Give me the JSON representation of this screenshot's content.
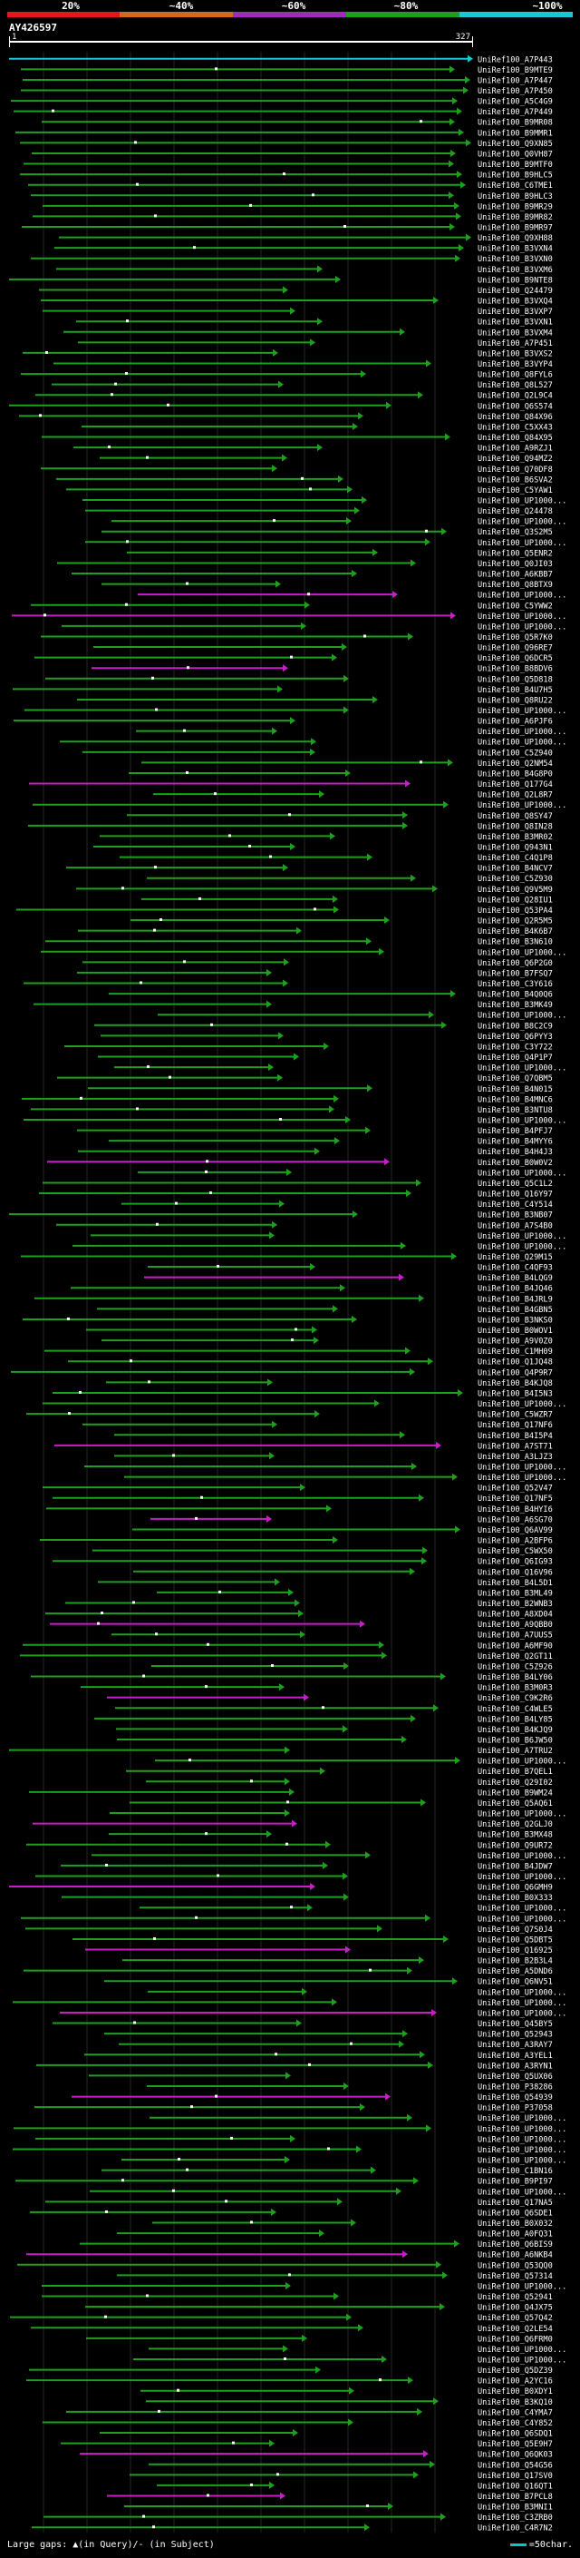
{
  "identity_scale": {
    "labels": [
      "20%",
      "~40%",
      "~60%",
      "~80%",
      "~100%"
    ],
    "colors": [
      "#e8141e",
      "#d2691e",
      "#9a2eb5",
      "#1ea01e",
      "#19c8d2"
    ]
  },
  "query": {
    "accession": "AY426597",
    "start": "1",
    "end": "327"
  },
  "hits": [
    {
      "id": "UniRef100_A7P443",
      "color": "#19c8d2"
    },
    {
      "id": "UniRef100_B9MTE9",
      "color": "#1ea01e"
    },
    {
      "id": "UniRef100_A7P447",
      "color": "#1ea01e"
    },
    {
      "id": "UniRef100_A7P450",
      "color": "#1ea01e"
    },
    {
      "id": "UniRef100_A5C4G9",
      "color": "#1ea01e"
    },
    {
      "id": "UniRef100_A7P449",
      "color": "#1ea01e"
    },
    {
      "id": "UniRef100_B9MR08",
      "color": "#1ea01e"
    },
    {
      "id": "UniRef100_B9MMR1",
      "color": "#1ea01e"
    },
    {
      "id": "UniRef100_Q9XN85",
      "color": "#1ea01e"
    },
    {
      "id": "UniRef100_Q0VH87",
      "color": "#1ea01e"
    },
    {
      "id": "UniRef100_B9MTF0",
      "color": "#1ea01e"
    },
    {
      "id": "UniRef100_B9HLC5",
      "color": "#1ea01e"
    },
    {
      "id": "UniRef100_C6TME1",
      "color": "#1ea01e"
    },
    {
      "id": "UniRef100_B9HLC3",
      "color": "#1ea01e"
    },
    {
      "id": "UniRef100_B9MR29",
      "color": "#1ea01e"
    },
    {
      "id": "UniRef100_B9MR82",
      "color": "#1ea01e"
    },
    {
      "id": "UniRef100_B9MR97",
      "color": "#1ea01e"
    },
    {
      "id": "UniRef100_Q9XH88",
      "color": "#1ea01e"
    },
    {
      "id": "UniRef100_B3VXN4",
      "color": "#1ea01e"
    },
    {
      "id": "UniRef100_B3VXN0",
      "color": "#1ea01e"
    },
    {
      "id": "UniRef100_B3VXM6",
      "color": "#1ea01e"
    },
    {
      "id": "UniRef100_B9NTE8",
      "color": "#1ea01e"
    },
    {
      "id": "UniRef100_Q24479",
      "color": "#1ea01e"
    },
    {
      "id": "UniRef100_B3VXQ4",
      "color": "#1ea01e"
    },
    {
      "id": "UniRef100_B3VXP7",
      "color": "#1ea01e"
    },
    {
      "id": "UniRef100_B3VXN1",
      "color": "#1ea01e"
    },
    {
      "id": "UniRef100_B3VXM4",
      "color": "#1ea01e"
    },
    {
      "id": "UniRef100_A7P451",
      "color": "#1ea01e"
    },
    {
      "id": "UniRef100_B3VXS2",
      "color": "#1ea01e"
    },
    {
      "id": "UniRef100_B3VYP4",
      "color": "#1ea01e"
    },
    {
      "id": "UniRef100_Q8FYL6",
      "color": "#1ea01e"
    },
    {
      "id": "UniRef100_Q8L527",
      "color": "#1ea01e"
    },
    {
      "id": "UniRef100_Q2L9C4",
      "color": "#1ea01e"
    },
    {
      "id": "UniRef100_Q6S574",
      "color": "#1ea01e"
    },
    {
      "id": "UniRef100_Q84X96",
      "color": "#1ea01e"
    },
    {
      "id": "UniRef100_C5XX43",
      "color": "#1ea01e"
    },
    {
      "id": "UniRef100_Q84X95",
      "color": "#1ea01e"
    },
    {
      "id": "UniRef100_A9RZJ1",
      "color": "#1ea01e"
    },
    {
      "id": "UniRef100_Q94MZ2",
      "color": "#1ea01e"
    },
    {
      "id": "UniRef100_Q70DF8",
      "color": "#1ea01e"
    },
    {
      "id": "UniRef100_B6SVA2",
      "color": "#1ea01e"
    },
    {
      "id": "UniRef100_C5YAW1",
      "color": "#1ea01e"
    },
    {
      "id": "UniRef100_UP1000...",
      "color": "#1ea01e"
    },
    {
      "id": "UniRef100_Q24478",
      "color": "#1ea01e"
    },
    {
      "id": "UniRef100_UP1000...",
      "color": "#1ea01e"
    },
    {
      "id": "UniRef100_Q3S2M5",
      "color": "#1ea01e"
    },
    {
      "id": "UniRef100_UP1000...",
      "color": "#1ea01e"
    },
    {
      "id": "UniRef100_Q5ENR2",
      "color": "#1ea01e"
    },
    {
      "id": "UniRef100_Q0JI03",
      "color": "#1ea01e"
    },
    {
      "id": "UniRef100_A6KBB7",
      "color": "#1ea01e"
    },
    {
      "id": "UniRef100_Q8BTX9",
      "color": "#1ea01e"
    },
    {
      "id": "UniRef100_UP1000...",
      "color": "#c81ec8"
    },
    {
      "id": "UniRef100_C5YWW2",
      "color": "#1ea01e"
    },
    {
      "id": "UniRef100_UP1000...",
      "color": "#c81ec8"
    },
    {
      "id": "UniRef100_UP1000...",
      "color": "#1ea01e"
    },
    {
      "id": "UniRef100_Q5R7K0",
      "color": "#1ea01e"
    },
    {
      "id": "UniRef100_Q96RE7",
      "color": "#1ea01e"
    },
    {
      "id": "UniRef100_Q6DCR5",
      "color": "#1ea01e"
    },
    {
      "id": "UniRef100_B8BDV6",
      "color": "#c81ec8"
    },
    {
      "id": "UniRef100_Q5D818",
      "color": "#1ea01e"
    },
    {
      "id": "UniRef100_B4U7H5",
      "color": "#1ea01e"
    },
    {
      "id": "UniRef100_Q8RU22",
      "color": "#1ea01e"
    },
    {
      "id": "UniRef100_UP1000...",
      "color": "#1ea01e"
    },
    {
      "id": "UniRef100_A6PJF6",
      "color": "#1ea01e"
    },
    {
      "id": "UniRef100_UP1000...",
      "color": "#1ea01e"
    },
    {
      "id": "UniRef100_UP1000...",
      "color": "#1ea01e"
    },
    {
      "id": "UniRef100_C5Z940",
      "color": "#1ea01e"
    },
    {
      "id": "UniRef100_Q2NM54",
      "color": "#1ea01e"
    },
    {
      "id": "UniRef100_B4G8P0",
      "color": "#1ea01e"
    },
    {
      "id": "UniRef100_Q177G4",
      "color": "#c81ec8"
    },
    {
      "id": "UniRef100_Q2L8R7",
      "color": "#1ea01e"
    },
    {
      "id": "UniRef100_UP1000...",
      "color": "#1ea01e"
    },
    {
      "id": "UniRef100_Q8SY47",
      "color": "#1ea01e"
    },
    {
      "id": "UniRef100_Q8IN28",
      "color": "#1ea01e"
    },
    {
      "id": "UniRef100_B3MR02",
      "color": "#1ea01e"
    },
    {
      "id": "UniRef100_Q943N1",
      "color": "#1ea01e"
    },
    {
      "id": "UniRef100_C4Q1P8",
      "color": "#1ea01e"
    },
    {
      "id": "UniRef100_B4NCV7",
      "color": "#1ea01e"
    },
    {
      "id": "UniRef100_C5Z930",
      "color": "#1ea01e"
    },
    {
      "id": "UniRef100_Q9V5M9",
      "color": "#1ea01e"
    },
    {
      "id": "UniRef100_Q28IU1",
      "color": "#1ea01e"
    },
    {
      "id": "UniRef100_Q53PA4",
      "color": "#1ea01e"
    },
    {
      "id": "UniRef100_Q2R5M5",
      "color": "#1ea01e"
    },
    {
      "id": "UniRef100_B4K6B7",
      "color": "#1ea01e"
    },
    {
      "id": "UniRef100_B3N610",
      "color": "#1ea01e"
    },
    {
      "id": "UniRef100_UP1000...",
      "color": "#1ea01e"
    },
    {
      "id": "UniRef100_Q6P2G0",
      "color": "#1ea01e"
    },
    {
      "id": "UniRef100_B7FSQ7",
      "color": "#1ea01e"
    },
    {
      "id": "UniRef100_C3Y616",
      "color": "#1ea01e"
    },
    {
      "id": "UniRef100_B4Q0Q6",
      "color": "#1ea01e"
    },
    {
      "id": "UniRef100_B3MK49",
      "color": "#1ea01e"
    },
    {
      "id": "UniRef100_UP1000...",
      "color": "#1ea01e"
    },
    {
      "id": "UniRef100_B8C2C9",
      "color": "#1ea01e"
    },
    {
      "id": "UniRef100_Q6PYY3",
      "color": "#1ea01e"
    },
    {
      "id": "UniRef100_C3Y722",
      "color": "#1ea01e"
    },
    {
      "id": "UniRef100_Q4P1P7",
      "color": "#1ea01e"
    },
    {
      "id": "UniRef100_UP1000...",
      "color": "#1ea01e"
    },
    {
      "id": "UniRef100_Q7QBM5",
      "color": "#1ea01e"
    },
    {
      "id": "UniRef100_B4N015",
      "color": "#1ea01e"
    },
    {
      "id": "UniRef100_B4MNC6",
      "color": "#1ea01e"
    },
    {
      "id": "UniRef100_B3NTU8",
      "color": "#1ea01e"
    },
    {
      "id": "UniRef100_UP1000...",
      "color": "#1ea01e"
    },
    {
      "id": "UniRef100_B4PFJ7",
      "color": "#1ea01e"
    },
    {
      "id": "UniRef100_B4MYY6",
      "color": "#1ea01e"
    },
    {
      "id": "UniRef100_B4H4J3",
      "color": "#1ea01e"
    },
    {
      "id": "UniRef100_B0W0V2",
      "color": "#c81ec8"
    },
    {
      "id": "UniRef100_UP1000...",
      "color": "#1ea01e"
    },
    {
      "id": "UniRef100_Q5C1L2",
      "color": "#1ea01e"
    },
    {
      "id": "UniRef100_Q16Y97",
      "color": "#1ea01e"
    },
    {
      "id": "UniRef100_C4Y514",
      "color": "#1ea01e"
    },
    {
      "id": "UniRef100_B3NB07",
      "color": "#1ea01e"
    },
    {
      "id": "UniRef100_A7S4B0",
      "color": "#1ea01e"
    },
    {
      "id": "UniRef100_UP1000...",
      "color": "#1ea01e"
    },
    {
      "id": "UniRef100_UP1000...",
      "color": "#1ea01e"
    },
    {
      "id": "UniRef100_Q29M15",
      "color": "#1ea01e"
    },
    {
      "id": "UniRef100_C4QF93",
      "color": "#1ea01e"
    },
    {
      "id": "UniRef100_B4LQG9",
      "color": "#c81ec8"
    },
    {
      "id": "UniRef100_B4JQ46",
      "color": "#1ea01e"
    },
    {
      "id": "UniRef100_B4JRL9",
      "color": "#1ea01e"
    },
    {
      "id": "UniRef100_B4GBN5",
      "color": "#1ea01e"
    },
    {
      "id": "UniRef100_B3NKS0",
      "color": "#1ea01e"
    },
    {
      "id": "UniRef100_B0WOV1",
      "color": "#1ea01e"
    },
    {
      "id": "UniRef100_A9V0Z0",
      "color": "#1ea01e"
    },
    {
      "id": "UniRef100_C1MH09",
      "color": "#1ea01e"
    },
    {
      "id": "UniRef100_Q1JQ48",
      "color": "#1ea01e"
    },
    {
      "id": "UniRef100_Q4P9R7",
      "color": "#1ea01e"
    },
    {
      "id": "UniRef100_B4KJQ8",
      "color": "#1ea01e"
    },
    {
      "id": "UniRef100_B4I5N3",
      "color": "#1ea01e"
    },
    {
      "id": "UniRef100_UP1000...",
      "color": "#1ea01e"
    },
    {
      "id": "UniRef100_C5WZR7",
      "color": "#1ea01e"
    },
    {
      "id": "UniRef100_Q17NF6",
      "color": "#1ea01e"
    },
    {
      "id": "UniRef100_B4I5P4",
      "color": "#1ea01e"
    },
    {
      "id": "UniRef100_A7ST71",
      "color": "#c81ec8"
    },
    {
      "id": "UniRef100_A3LJZ3",
      "color": "#1ea01e"
    },
    {
      "id": "UniRef100_UP1000...",
      "color": "#1ea01e"
    },
    {
      "id": "UniRef100_UP1000...",
      "color": "#1ea01e"
    },
    {
      "id": "UniRef100_Q52V47",
      "color": "#1ea01e"
    },
    {
      "id": "UniRef100_Q17NF5",
      "color": "#1ea01e"
    },
    {
      "id": "UniRef100_B4HYI6",
      "color": "#1ea01e"
    },
    {
      "id": "UniRef100_A6SG70",
      "color": "#c81ec8"
    },
    {
      "id": "UniRef100_Q6AV99",
      "color": "#1ea01e"
    },
    {
      "id": "UniRef100_A2BFP6",
      "color": "#1ea01e"
    },
    {
      "id": "UniRef100_C5WX50",
      "color": "#1ea01e"
    },
    {
      "id": "UniRef100_Q6IG93",
      "color": "#1ea01e"
    },
    {
      "id": "UniRef100_Q16V96",
      "color": "#1ea01e"
    },
    {
      "id": "UniRef100_B4L5D1",
      "color": "#1ea01e"
    },
    {
      "id": "UniRef100_B3ML49",
      "color": "#1ea01e"
    },
    {
      "id": "UniRef100_B2WNB3",
      "color": "#1ea01e"
    },
    {
      "id": "UniRef100_A8XD04",
      "color": "#1ea01e"
    },
    {
      "id": "UniRef100_A9QBB0",
      "color": "#c81ec8"
    },
    {
      "id": "UniRef100_A7UUS5",
      "color": "#1ea01e"
    },
    {
      "id": "UniRef100_A6MF90",
      "color": "#1ea01e"
    },
    {
      "id": "UniRef100_Q2GT11",
      "color": "#1ea01e"
    },
    {
      "id": "UniRef100_C5Z926",
      "color": "#1ea01e"
    },
    {
      "id": "UniRef100_B4LY06",
      "color": "#1ea01e"
    },
    {
      "id": "UniRef100_B3M0R3",
      "color": "#1ea01e"
    },
    {
      "id": "UniRef100_C9K2R6",
      "color": "#c81ec8"
    },
    {
      "id": "UniRef100_C4WLE5",
      "color": "#1ea01e"
    },
    {
      "id": "UniRef100_B4LY85",
      "color": "#1ea01e"
    },
    {
      "id": "UniRef100_B4KJQ9",
      "color": "#1ea01e"
    },
    {
      "id": "UniRef100_B6JW50",
      "color": "#1ea01e"
    },
    {
      "id": "UniRef100_A7TRU2",
      "color": "#1ea01e"
    },
    {
      "id": "UniRef100_UP1000...",
      "color": "#1ea01e"
    },
    {
      "id": "UniRef100_B7QEL1",
      "color": "#1ea01e"
    },
    {
      "id": "UniRef100_Q29I02",
      "color": "#1ea01e"
    },
    {
      "id": "UniRef100_B9WM24",
      "color": "#1ea01e"
    },
    {
      "id": "UniRef100_Q5AQ61",
      "color": "#1ea01e"
    },
    {
      "id": "UniRef100_UP1000...",
      "color": "#1ea01e"
    },
    {
      "id": "UniRef100_Q2GLJ0",
      "color": "#c81ec8"
    },
    {
      "id": "UniRef100_B3MX48",
      "color": "#1ea01e"
    },
    {
      "id": "UniRef100_Q9UR72",
      "color": "#1ea01e"
    },
    {
      "id": "UniRef100_UP1000...",
      "color": "#1ea01e"
    },
    {
      "id": "UniRef100_B4JDW7",
      "color": "#1ea01e"
    },
    {
      "id": "UniRef100_UP1000...",
      "color": "#1ea01e"
    },
    {
      "id": "UniRef100_Q6GMH9",
      "color": "#c81ec8"
    },
    {
      "id": "UniRef100_B0X333",
      "color": "#1ea01e"
    },
    {
      "id": "UniRef100_UP1000...",
      "color": "#1ea01e"
    },
    {
      "id": "UniRef100_UP1000...",
      "color": "#1ea01e"
    },
    {
      "id": "UniRef100_Q7S0J4",
      "color": "#1ea01e"
    },
    {
      "id": "UniRef100_Q5DBT5",
      "color": "#1ea01e"
    },
    {
      "id": "UniRef100_Q16925",
      "color": "#c81ec8"
    },
    {
      "id": "UniRef100_B2B3L4",
      "color": "#1ea01e"
    },
    {
      "id": "UniRef100_A5DND6",
      "color": "#1ea01e"
    },
    {
      "id": "UniRef100_Q6NV51",
      "color": "#1ea01e"
    },
    {
      "id": "UniRef100_UP1000...",
      "color": "#1ea01e"
    },
    {
      "id": "UniRef100_UP1000...",
      "color": "#1ea01e"
    },
    {
      "id": "UniRef100_UP1000...",
      "color": "#c81ec8"
    },
    {
      "id": "UniRef100_Q45BY5",
      "color": "#1ea01e"
    },
    {
      "id": "UniRef100_Q52943",
      "color": "#1ea01e"
    },
    {
      "id": "UniRef100_A3RAY7",
      "color": "#1ea01e"
    },
    {
      "id": "UniRef100_A3YEL1",
      "color": "#1ea01e"
    },
    {
      "id": "UniRef100_A3RYN1",
      "color": "#1ea01e"
    },
    {
      "id": "UniRef100_Q5UX06",
      "color": "#1ea01e"
    },
    {
      "id": "UniRef100_P38286",
      "color": "#1ea01e"
    },
    {
      "id": "UniRef100_Q54939",
      "color": "#c81ec8"
    },
    {
      "id": "UniRef100_P37058",
      "color": "#1ea01e"
    },
    {
      "id": "UniRef100_UP1000...",
      "color": "#1ea01e"
    },
    {
      "id": "UniRef100_UP1000...",
      "color": "#1ea01e"
    },
    {
      "id": "UniRef100_UP1000...",
      "color": "#1ea01e"
    },
    {
      "id": "UniRef100_UP1000...",
      "color": "#1ea01e"
    },
    {
      "id": "UniRef100_UP1000...",
      "color": "#1ea01e"
    },
    {
      "id": "UniRef100_C1BN16",
      "color": "#1ea01e"
    },
    {
      "id": "UniRef100_B9PI97",
      "color": "#1ea01e"
    },
    {
      "id": "UniRef100_UP1000...",
      "color": "#1ea01e"
    },
    {
      "id": "UniRef100_Q17NA5",
      "color": "#1ea01e"
    },
    {
      "id": "UniRef100_Q6SDE1",
      "color": "#1ea01e"
    },
    {
      "id": "UniRef100_B0X032",
      "color": "#1ea01e"
    },
    {
      "id": "UniRef100_A0FQ31",
      "color": "#1ea01e"
    },
    {
      "id": "UniRef100_Q6BIS9",
      "color": "#1ea01e"
    },
    {
      "id": "UniRef100_A6NKB4",
      "color": "#c81ec8"
    },
    {
      "id": "UniRef100_Q53QQ0",
      "color": "#1ea01e"
    },
    {
      "id": "UniRef100_Q57314",
      "color": "#1ea01e"
    },
    {
      "id": "UniRef100_UP1000...",
      "color": "#1ea01e"
    },
    {
      "id": "UniRef100_Q52941",
      "color": "#1ea01e"
    },
    {
      "id": "UniRef100_Q4JX75",
      "color": "#1ea01e"
    },
    {
      "id": "UniRef100_Q57Q42",
      "color": "#1ea01e"
    },
    {
      "id": "UniRef100_Q2LE54",
      "color": "#1ea01e"
    },
    {
      "id": "UniRef100_Q6FRM0",
      "color": "#1ea01e"
    },
    {
      "id": "UniRef100_UP1000...",
      "color": "#1ea01e"
    },
    {
      "id": "UniRef100_UP1000...",
      "color": "#1ea01e"
    },
    {
      "id": "UniRef100_Q5DZ39",
      "color": "#1ea01e"
    },
    {
      "id": "UniRef100_A2YC16",
      "color": "#1ea01e"
    },
    {
      "id": "UniRef100_B0XDY1",
      "color": "#1ea01e"
    },
    {
      "id": "UniRef100_B3KQ10",
      "color": "#1ea01e"
    },
    {
      "id": "UniRef100_C4YMA7",
      "color": "#1ea01e"
    },
    {
      "id": "UniRef100_C4Y852",
      "color": "#1ea01e"
    },
    {
      "id": "UniRef100_Q6SDQ1",
      "color": "#1ea01e"
    },
    {
      "id": "UniRef100_Q5E9H7",
      "color": "#1ea01e"
    },
    {
      "id": "UniRef100_Q6QK03",
      "color": "#c81ec8"
    },
    {
      "id": "UniRef100_Q54G56",
      "color": "#1ea01e"
    },
    {
      "id": "UniRef100_Q17SV0",
      "color": "#1ea01e"
    },
    {
      "id": "UniRef100_Q16QT1",
      "color": "#1ea01e"
    },
    {
      "id": "UniRef100_B7PCL8",
      "color": "#c81ec8"
    },
    {
      "id": "UniRef100_B3MNI1",
      "color": "#1ea01e"
    },
    {
      "id": "UniRef100_C3ZRB0",
      "color": "#1ea01e"
    },
    {
      "id": "UniRef100_C4R7N2",
      "color": "#1ea01e"
    }
  ],
  "legend": {
    "gaps_text": "Large gaps: ▲(in Query)/- (in Subject)",
    "scale_text": "=50char."
  }
}
